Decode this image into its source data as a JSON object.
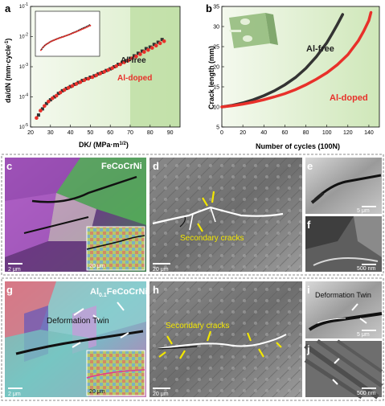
{
  "panel_a": {
    "label": "a",
    "ylabel": "da/dN (mm·cycle",
    "ylabel_sup": "-1",
    "ylabel_close": ")",
    "xlabel": "DK/ (MPa·m",
    "xlabel_sup": "1/2",
    "xlabel_close": ")",
    "legend_free": "Al-free",
    "legend_doped": "Al-doped"
  },
  "panel_b": {
    "label": "b",
    "ylabel": "Crack length (mm)",
    "xlabel": "Number of cycles (100N)",
    "legend_free": "Al-free",
    "legend_doped": "Al-doped"
  },
  "micro_top": {
    "c_label": "c",
    "c_title": "FeCoCrNi",
    "c_scale": "2 μm",
    "c_inset_scale": "20 μm",
    "d_label": "d",
    "d_annot": "Secondary cracks",
    "d_scale": "20 μm",
    "e_label": "e",
    "e_scale": "5 μm",
    "f_label": "f",
    "f_scale": "500 nm"
  },
  "micro_bottom": {
    "g_label": "g",
    "g_title_main": "Al",
    "g_title_sub": "0.1",
    "g_title_rest": "FeCoCrNi",
    "g_annot": "Deformation Twin",
    "g_scale": "2 μm",
    "g_inset_scale": "20 μm",
    "h_label": "h",
    "h_annot": "Secondary cracks",
    "h_scale": "20 μm",
    "i_label": "i",
    "i_annot": "Deformation Twin",
    "i_scale": "5 μm",
    "j_label": "j",
    "j_scale": "500 nm"
  },
  "colors": {
    "free": "#333333",
    "doped": "#e8302a",
    "green_light": "#d7ecc4",
    "green_dark": "#a9d48a",
    "annot_yellow": "#f2e600"
  },
  "chart_data": [
    {
      "type": "scatter",
      "xlabel": "DK/ (MPa·m1/2)",
      "ylabel": "da/dN (mm·cycle-1)",
      "xlim": [
        20,
        95
      ],
      "ylim": [
        1e-05,
        0.1
      ],
      "yscale": "log",
      "x_ticks": [
        20,
        30,
        40,
        50,
        60,
        70,
        80,
        90
      ],
      "y_ticks": [
        "10^-5",
        "10^-4",
        "10^-3",
        "10^-2",
        "10^-1"
      ],
      "series": [
        {
          "name": "Al-free",
          "x": [
            24,
            26,
            28,
            30,
            32,
            34,
            36,
            38,
            40,
            42,
            44,
            46,
            48,
            50,
            52,
            54,
            56,
            58,
            60,
            62,
            64,
            66,
            68,
            70,
            72,
            74,
            76,
            78,
            80,
            82,
            84,
            86
          ],
          "y": [
            2.5e-05,
            4e-05,
            6e-05,
            8e-05,
            0.0001,
            0.00013,
            0.00016,
            0.00019,
            0.00022,
            0.00026,
            0.0003,
            0.00035,
            0.0004,
            0.00045,
            0.0005,
            0.00058,
            0.00065,
            0.00075,
            0.00085,
            0.001,
            0.0012,
            0.0014,
            0.0016,
            0.0019,
            0.0023,
            0.0028,
            0.0033,
            0.004,
            0.0045,
            0.0055,
            0.0065,
            0.008
          ]
        },
        {
          "name": "Al-doped",
          "x": [
            23,
            25,
            27,
            29,
            31,
            33,
            35,
            37,
            39,
            41,
            43,
            45,
            47,
            49,
            51,
            53,
            55,
            57,
            59,
            61,
            63,
            65,
            67,
            69,
            71,
            73,
            75,
            77,
            79,
            81,
            83,
            85,
            87
          ],
          "y": [
            2e-05,
            3.5e-05,
            5e-05,
            7e-05,
            9e-05,
            0.00011,
            0.00014,
            0.00017,
            0.0002,
            0.00023,
            0.00027,
            0.00031,
            0.00036,
            0.0004,
            0.00045,
            0.00052,
            0.0006,
            0.00068,
            0.00078,
            0.0009,
            0.00105,
            0.0012,
            0.0014,
            0.0016,
            0.0019,
            0.0022,
            0.0026,
            0.0031,
            0.0036,
            0.0042,
            0.005,
            0.006,
            0.007
          ]
        }
      ]
    },
    {
      "type": "line",
      "xlabel": "Number of cycles (100N)",
      "ylabel": "Crack length (mm)",
      "xlim": [
        0,
        150
      ],
      "ylim": [
        5,
        35
      ],
      "x_ticks": [
        0,
        20,
        40,
        60,
        80,
        100,
        120,
        140
      ],
      "y_ticks": [
        5,
        10,
        15,
        20,
        25,
        30,
        35
      ],
      "series": [
        {
          "name": "Al-free",
          "x": [
            0,
            10,
            20,
            30,
            40,
            50,
            60,
            70,
            80,
            90,
            100,
            105,
            110,
            115
          ],
          "y": [
            10,
            10.4,
            11,
            11.8,
            12.8,
            14,
            15.5,
            17.3,
            19.6,
            22.5,
            26,
            28.2,
            30.5,
            33
          ]
        },
        {
          "name": "Al-doped",
          "x": [
            0,
            10,
            20,
            30,
            40,
            50,
            60,
            70,
            80,
            90,
            100,
            110,
            120,
            130,
            135,
            140,
            142
          ],
          "y": [
            10,
            10.3,
            10.7,
            11.2,
            11.8,
            12.5,
            13.3,
            14.3,
            15.5,
            16.9,
            18.5,
            20.5,
            23,
            26.5,
            28.8,
            31.5,
            33.5
          ]
        }
      ]
    }
  ]
}
